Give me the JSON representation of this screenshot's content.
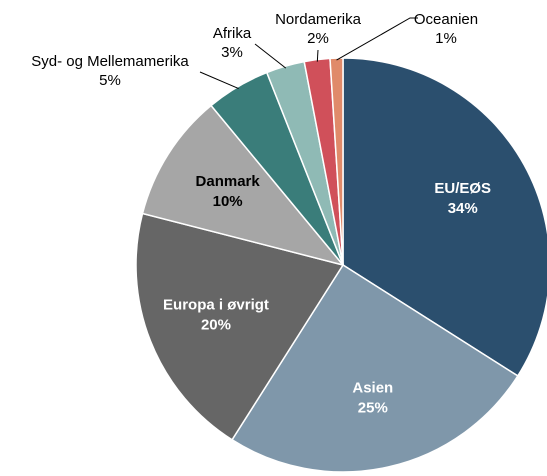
{
  "chart_data": {
    "type": "pie",
    "categories": [
      "EU/EØS",
      "Asien",
      "Europa i øvrigt",
      "Danmark",
      "Syd- og Mellemamerika",
      "Afrika",
      "Nordamerika",
      "Oceanien"
    ],
    "values": [
      34,
      25,
      20,
      10,
      5,
      3,
      2,
      1
    ],
    "value_labels": [
      "34%",
      "25%",
      "20%",
      "10%",
      "5%",
      "3%",
      "2%",
      "1%"
    ],
    "colors": [
      "#2b4f6e",
      "#7f97aa",
      "#666666",
      "#a6a6a6",
      "#3a7d7a",
      "#8fbab5",
      "#d0505a",
      "#e08a6a"
    ]
  }
}
